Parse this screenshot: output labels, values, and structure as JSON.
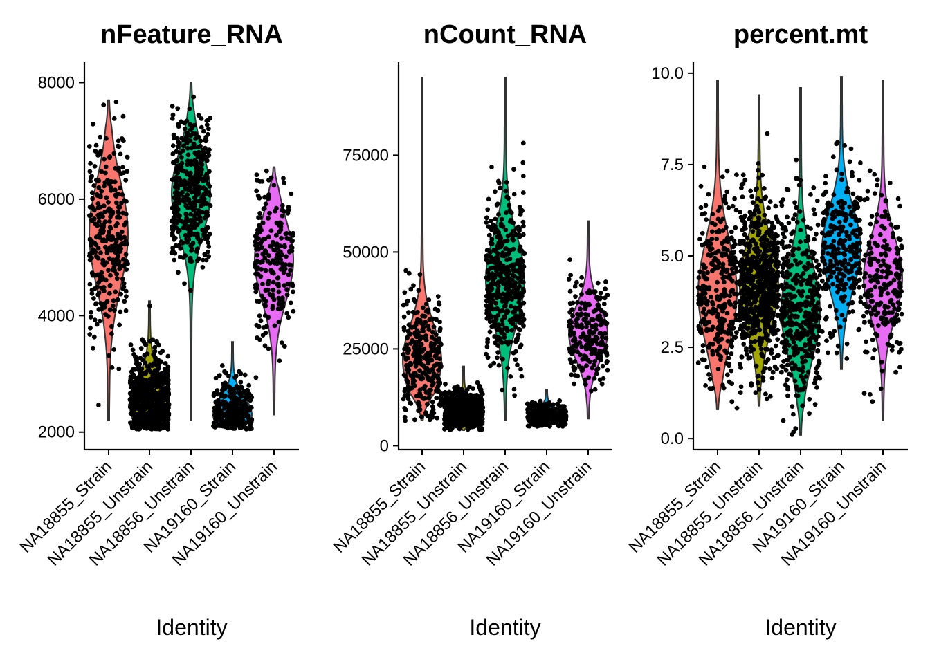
{
  "chart_data": [
    {
      "type": "violin",
      "title": "nFeature_RNA",
      "xlabel": "Identity",
      "ylabel": "",
      "categories": [
        "NA18855_Strain",
        "NA18855_Unstrain",
        "NA18856_Unstrain",
        "NA19160_Strain",
        "NA19160_Unstrain"
      ],
      "ylim": [
        1700,
        8350
      ],
      "yticks": [
        2000,
        4000,
        6000,
        8000
      ],
      "ytick_labels": [
        "2000",
        "4000",
        "6000",
        "8000"
      ],
      "series": [
        {
          "category": "NA18855_Strain",
          "color": "#F8766D",
          "min": 2200,
          "max": 7700,
          "mode": 5400,
          "bandwidth": 900,
          "n_points": 300
        },
        {
          "category": "NA18855_Unstrain",
          "color": "#A3A500",
          "min": 2050,
          "max": 4250,
          "mode": 2450,
          "bandwidth": 450,
          "n_points": 700
        },
        {
          "category": "NA18856_Unstrain",
          "color": "#00BF7D",
          "min": 2200,
          "max": 8000,
          "mode": 6100,
          "bandwidth": 700,
          "n_points": 420
        },
        {
          "category": "NA19160_Strain",
          "color": "#00B0F6",
          "min": 2050,
          "max": 3550,
          "mode": 2300,
          "bandwidth": 300,
          "n_points": 280
        },
        {
          "category": "NA19160_Unstrain",
          "color": "#E76BF3",
          "min": 2300,
          "max": 6550,
          "mode": 4950,
          "bandwidth": 700,
          "n_points": 230
        }
      ]
    },
    {
      "type": "violin",
      "title": "nCount_RNA",
      "xlabel": "Identity",
      "ylabel": "",
      "categories": [
        "NA18855_Strain",
        "NA18855_Unstrain",
        "NA18856_Unstrain",
        "NA19160_Strain",
        "NA19160_Unstrain"
      ],
      "ylim": [
        -1000,
        99000
      ],
      "yticks": [
        0,
        25000,
        50000,
        75000
      ],
      "ytick_labels": [
        "0",
        "25000",
        "50000",
        "75000"
      ],
      "series": [
        {
          "category": "NA18855_Strain",
          "color": "#F8766D",
          "min": 6500,
          "max": 95000,
          "mode": 22000,
          "bandwidth": 9000,
          "n_points": 300
        },
        {
          "category": "NA18855_Unstrain",
          "color": "#A3A500",
          "min": 4000,
          "max": 20500,
          "mode": 9000,
          "bandwidth": 2500,
          "n_points": 700
        },
        {
          "category": "NA18856_Unstrain",
          "color": "#00BF7D",
          "min": 6500,
          "max": 95000,
          "mode": 43000,
          "bandwidth": 11000,
          "n_points": 420
        },
        {
          "category": "NA19160_Strain",
          "color": "#00B0F6",
          "min": 5000,
          "max": 14500,
          "mode": 7500,
          "bandwidth": 1800,
          "n_points": 280
        },
        {
          "category": "NA19160_Unstrain",
          "color": "#E76BF3",
          "min": 7000,
          "max": 58000,
          "mode": 29000,
          "bandwidth": 7000,
          "n_points": 230
        }
      ]
    },
    {
      "type": "violin",
      "title": "percent.mt",
      "xlabel": "Identity",
      "ylabel": "",
      "categories": [
        "NA18855_Strain",
        "NA18855_Unstrain",
        "NA18856_Unstrain",
        "NA19160_Strain",
        "NA19160_Unstrain"
      ],
      "ylim": [
        -0.3,
        10.3
      ],
      "yticks": [
        0.0,
        2.5,
        5.0,
        7.5,
        10.0
      ],
      "ytick_labels": [
        "0.0",
        "2.5",
        "5.0",
        "7.5",
        "10.0"
      ],
      "series": [
        {
          "category": "NA18855_Strain",
          "color": "#F8766D",
          "min": 0.8,
          "max": 9.8,
          "mode": 4.0,
          "bandwidth": 1.4,
          "n_points": 300
        },
        {
          "category": "NA18855_Unstrain",
          "color": "#A3A500",
          "min": 0.9,
          "max": 9.4,
          "mode": 4.2,
          "bandwidth": 1.2,
          "n_points": 700
        },
        {
          "category": "NA18856_Unstrain",
          "color": "#00BF7D",
          "min": 0.1,
          "max": 9.6,
          "mode": 3.5,
          "bandwidth": 1.3,
          "n_points": 420
        },
        {
          "category": "NA19160_Strain",
          "color": "#00B0F6",
          "min": 1.9,
          "max": 9.9,
          "mode": 5.2,
          "bandwidth": 1.1,
          "n_points": 280
        },
        {
          "category": "NA19160_Unstrain",
          "color": "#E76BF3",
          "min": 0.5,
          "max": 9.8,
          "mode": 4.4,
          "bandwidth": 1.1,
          "n_points": 230
        }
      ]
    }
  ]
}
